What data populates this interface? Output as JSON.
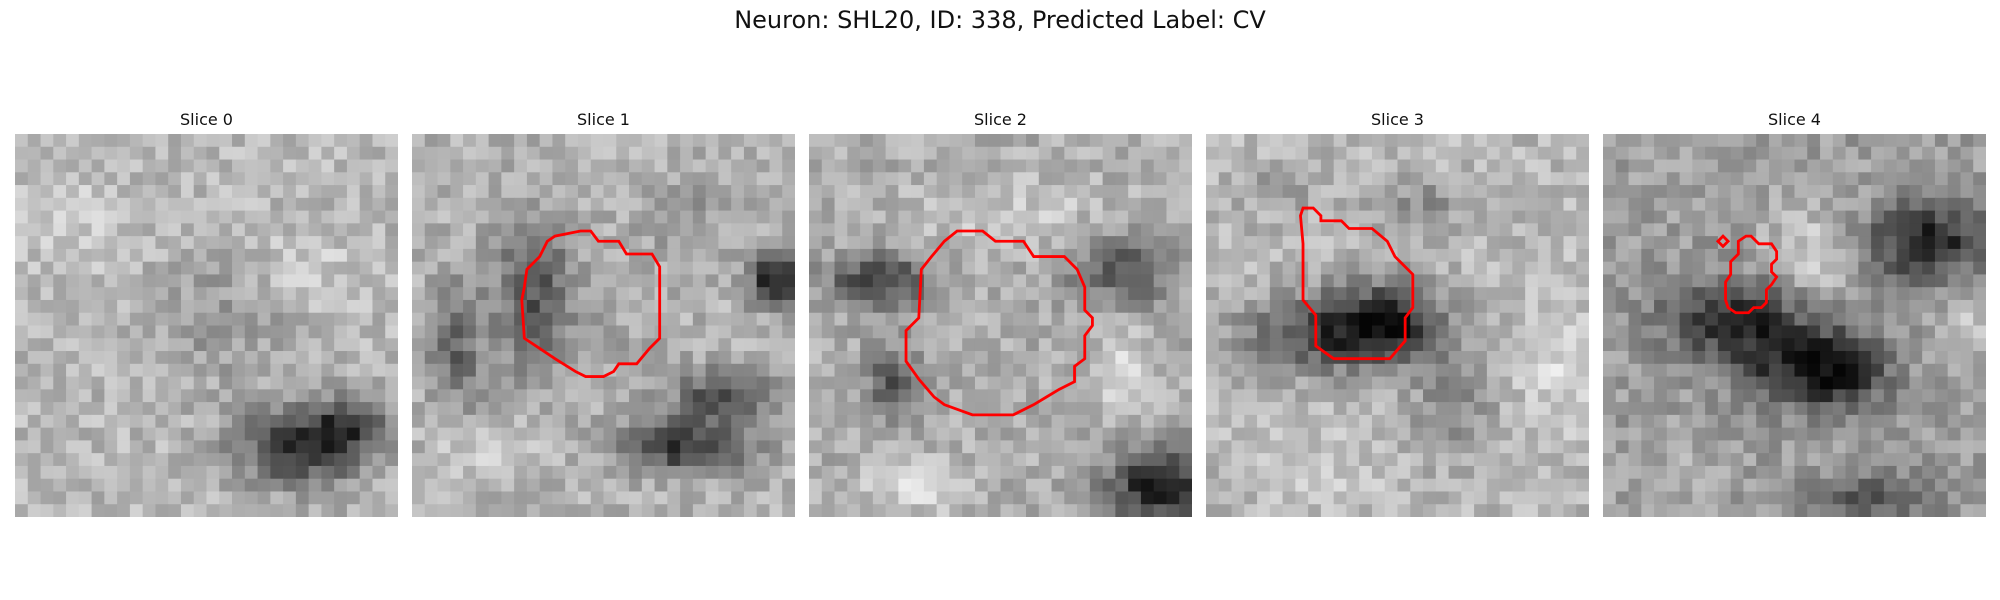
{
  "figure": {
    "title": "Neuron: SHL20, ID: 338, Predicted Label: CV",
    "contour_color": "#ff0000",
    "colormap": "gray",
    "panels": [
      {
        "title": "Slice 0",
        "has_contour": false
      },
      {
        "title": "Slice 1",
        "has_contour": true
      },
      {
        "title": "Slice 2",
        "has_contour": true
      },
      {
        "title": "Slice 3",
        "has_contour": true
      },
      {
        "title": "Slice 4",
        "has_contour": true
      }
    ]
  }
}
